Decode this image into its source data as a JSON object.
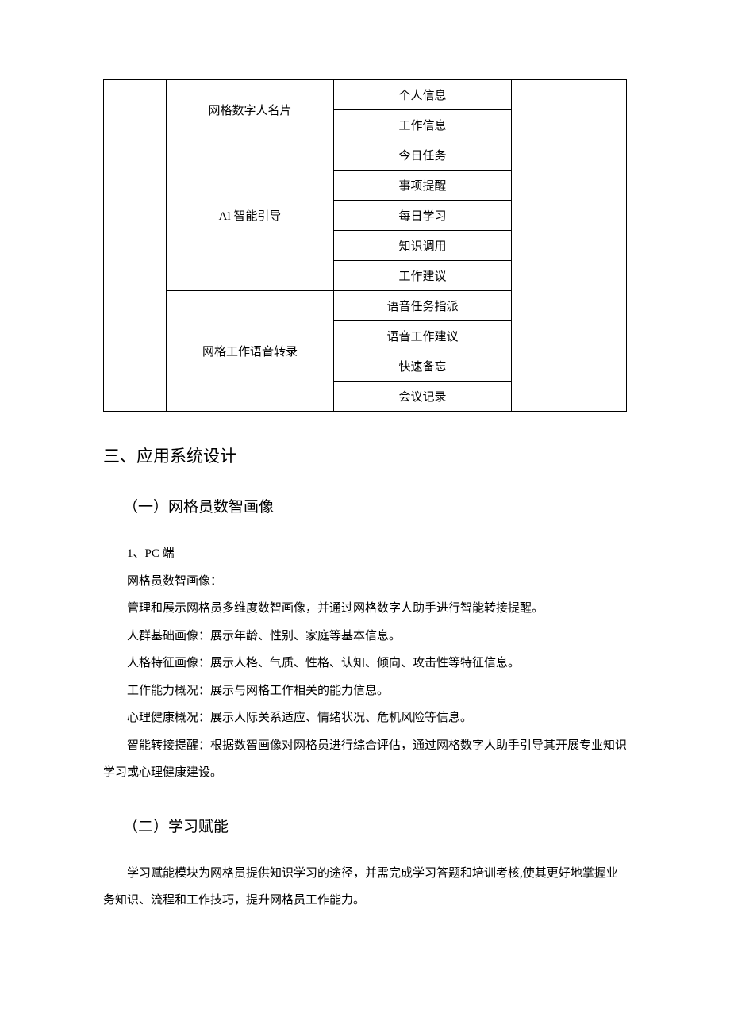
{
  "table": {
    "rows": [
      {
        "col2": "网格数字人名片",
        "col3": "个人信息",
        "col2_rowspan": 2
      },
      {
        "col3": "工作信息"
      },
      {
        "col2": "Al 智能引导",
        "col3": "今日任务",
        "col2_rowspan": 5
      },
      {
        "col3": "事项提醒"
      },
      {
        "col3": "每日学习"
      },
      {
        "col3": "知识调用"
      },
      {
        "col3": "工作建议"
      },
      {
        "col2": "网格工作语音转录",
        "col3": "语音任务指派",
        "col2_rowspan": 4
      },
      {
        "col3": "语音工作建议"
      },
      {
        "col3": "快速备忘"
      },
      {
        "col3": "会议记录"
      }
    ]
  },
  "headings": {
    "h1": "三、应用系统设计",
    "h2a": "（一）网格员数智画像",
    "h2b": "（二）学习赋能"
  },
  "paragraphs": {
    "p1": "1、PC 端",
    "p2": "网格员数智画像：",
    "p3": "管理和展示网格员多维度数智画像，并通过网格数字人助手进行智能转接提醒。",
    "p4": "人群基础画像：展示年龄、性别、家庭等基本信息。",
    "p5": "人格特征画像：展示人格、气质、性格、认知、倾向、攻击性等特征信息。",
    "p6": "工作能力概况：展示与网格工作相关的能力信息。",
    "p7": "心理健康概况：展示人际关系适应、情绪状况、危机风险等信息。",
    "p8": "智能转接提醒：根据数智画像对网格员进行综合评估，通过网格数字人助手引导其开展专业知识学习或心理健康建设。",
    "p9": "学习赋能模块为网格员提供知识学习的途径，并需完成学习答题和培训考核,使其更好地掌握业务知识、流程和工作技巧，提升网格员工作能力。"
  }
}
